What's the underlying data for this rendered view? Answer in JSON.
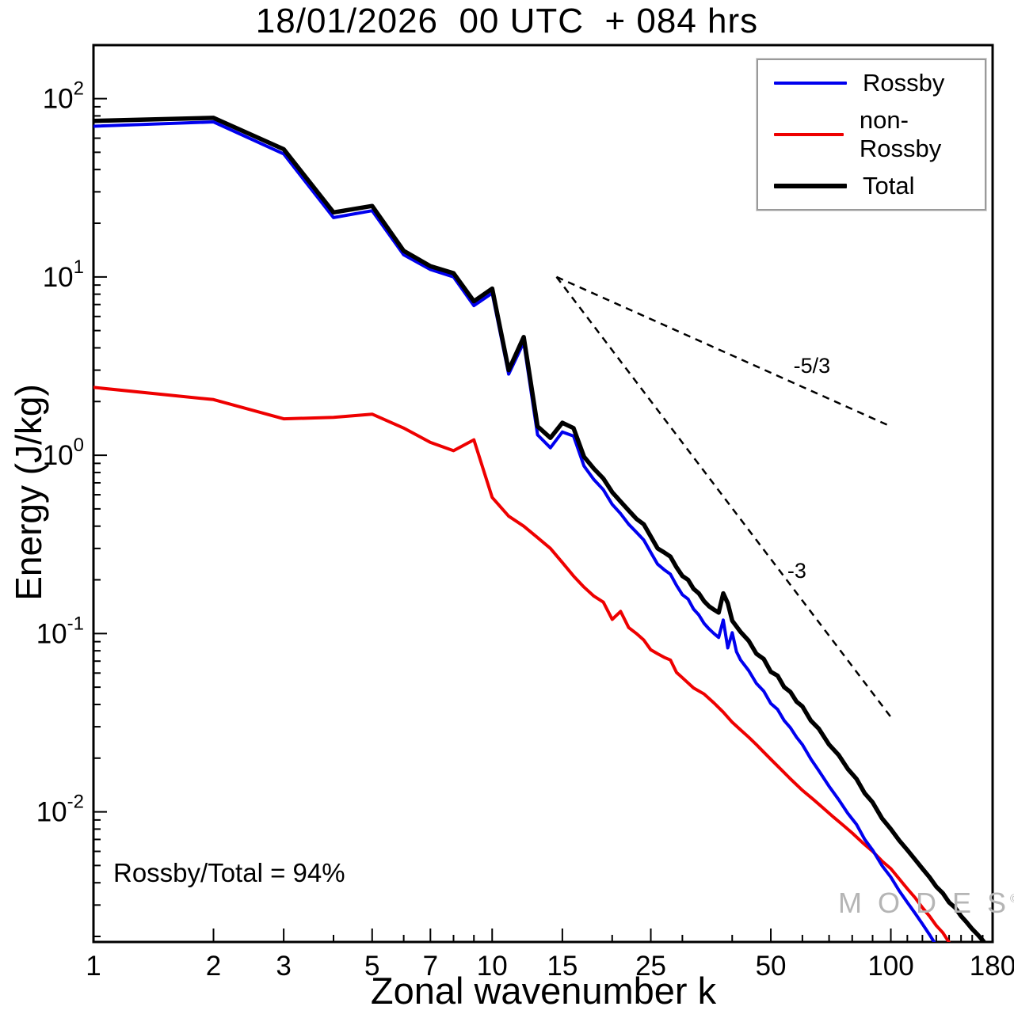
{
  "chart_data": {
    "type": "line",
    "title": "18/01/2026  00 UTC  + 084 hrs",
    "xlabel": "Zonal wavenumber k",
    "ylabel": "Energy (J/kg)",
    "annotation": "Rossby/Total = 94%",
    "watermark": "M O D E S",
    "watermark_mark": "©",
    "x_scale": "log",
    "y_scale": "log",
    "x_range": [
      1,
      180
    ],
    "y_range_exp": [
      -2.73,
      2.3
    ],
    "x_major_ticks": [
      1,
      2,
      3,
      5,
      7,
      10,
      15,
      25,
      50,
      100,
      180
    ],
    "y_major_tick_exps": [
      2,
      1,
      0,
      -1,
      -2
    ],
    "grid": false,
    "legend": {
      "position": "top-right",
      "entries": [
        {
          "label": "Rossby",
          "color": "#0000ee",
          "thickness": 4
        },
        {
          "label": "non-Rossby",
          "color": "#ee0000",
          "thickness": 4
        },
        {
          "label": "Total",
          "color": "#000000",
          "thickness": 6
        }
      ]
    },
    "ref_lines": [
      {
        "label": "-5/3",
        "from": [
          14.5,
          10
        ],
        "to": [
          100,
          1.45
        ],
        "label_at": [
          57,
          2.9
        ]
      },
      {
        "label": "-3",
        "from": [
          14.5,
          10
        ],
        "to": [
          100,
          0.034
        ],
        "label_at": [
          55,
          0.205
        ]
      }
    ],
    "series": [
      {
        "name": "non-Rossby",
        "color": "#ee0000",
        "width": 4,
        "points": [
          [
            1,
            2.4
          ],
          [
            2,
            2.05
          ],
          [
            3,
            1.6
          ],
          [
            4,
            1.63
          ],
          [
            5,
            1.7
          ],
          [
            6,
            1.42
          ],
          [
            7,
            1.18
          ],
          [
            8,
            1.06
          ],
          [
            9,
            1.22
          ],
          [
            10,
            0.58
          ],
          [
            11,
            0.455
          ],
          [
            12,
            0.4
          ],
          [
            13,
            0.345
          ],
          [
            14,
            0.3
          ],
          [
            15,
            0.25
          ],
          [
            16,
            0.21
          ],
          [
            17,
            0.182
          ],
          [
            18,
            0.162
          ],
          [
            19,
            0.15
          ],
          [
            20,
            0.12
          ],
          [
            21,
            0.133
          ],
          [
            22,
            0.108
          ],
          [
            23,
            0.1
          ],
          [
            24,
            0.092
          ],
          [
            25,
            0.081
          ],
          [
            26,
            0.077
          ],
          [
            27,
            0.0735
          ],
          [
            28,
            0.071
          ],
          [
            29,
            0.0605
          ],
          [
            30,
            0.0565
          ],
          [
            32,
            0.0495
          ],
          [
            34,
            0.0458
          ],
          [
            36,
            0.0408
          ],
          [
            38,
            0.0362
          ],
          [
            40,
            0.0318
          ],
          [
            42,
            0.0288
          ],
          [
            44,
            0.0262
          ],
          [
            46,
            0.0238
          ],
          [
            48,
            0.0216
          ],
          [
            50,
            0.0197
          ],
          [
            53,
            0.0173
          ],
          [
            56,
            0.0153
          ],
          [
            60,
            0.0132
          ],
          [
            64,
            0.0117
          ],
          [
            68,
            0.0104
          ],
          [
            72,
            0.0093
          ],
          [
            76,
            0.0084
          ],
          [
            80,
            0.0076
          ],
          [
            85,
            0.0067
          ],
          [
            90,
            0.006
          ],
          [
            95,
            0.0053
          ],
          [
            100,
            0.0048
          ],
          [
            105,
            0.0042
          ],
          [
            110,
            0.0037
          ],
          [
            115,
            0.0033
          ],
          [
            120,
            0.0029
          ],
          [
            125,
            0.0026
          ],
          [
            130,
            0.0023
          ],
          [
            135,
            0.0021
          ],
          [
            140,
            0.00185
          ],
          [
            145,
            0.00165
          ],
          [
            150,
            0.00148
          ],
          [
            155,
            0.00133
          ],
          [
            160,
            0.0012
          ]
        ]
      },
      {
        "name": "Rossby",
        "color": "#0000ee",
        "width": 4,
        "points": [
          [
            1,
            70
          ],
          [
            2,
            74
          ],
          [
            3,
            49
          ],
          [
            4,
            21.5
          ],
          [
            5,
            23.5
          ],
          [
            6,
            13.3
          ],
          [
            7,
            11.0
          ],
          [
            8,
            10.0
          ],
          [
            9,
            6.9
          ],
          [
            10,
            8.1
          ],
          [
            11,
            2.85
          ],
          [
            12,
            4.3
          ],
          [
            13,
            1.3
          ],
          [
            14,
            1.1
          ],
          [
            15,
            1.35
          ],
          [
            16,
            1.28
          ],
          [
            17,
            0.87
          ],
          [
            18,
            0.73
          ],
          [
            19,
            0.64
          ],
          [
            20,
            0.53
          ],
          [
            21,
            0.47
          ],
          [
            22,
            0.41
          ],
          [
            23,
            0.37
          ],
          [
            24,
            0.335
          ],
          [
            25,
            0.285
          ],
          [
            26,
            0.245
          ],
          [
            27,
            0.228
          ],
          [
            28,
            0.215
          ],
          [
            29,
            0.186
          ],
          [
            30,
            0.165
          ],
          [
            31,
            0.156
          ],
          [
            32,
            0.137
          ],
          [
            33,
            0.127
          ],
          [
            34,
            0.114
          ],
          [
            35,
            0.106
          ],
          [
            36,
            0.1
          ],
          [
            37,
            0.095
          ],
          [
            38,
            0.119
          ],
          [
            39,
            0.083
          ],
          [
            40,
            0.101
          ],
          [
            41,
            0.079
          ],
          [
            42,
            0.071
          ],
          [
            44,
            0.062
          ],
          [
            46,
            0.0525
          ],
          [
            48,
            0.0475
          ],
          [
            50,
            0.0405
          ],
          [
            52,
            0.0375
          ],
          [
            54,
            0.0325
          ],
          [
            56,
            0.0296
          ],
          [
            58,
            0.0262
          ],
          [
            60,
            0.0238
          ],
          [
            63,
            0.0198
          ],
          [
            66,
            0.017
          ],
          [
            70,
            0.0139
          ],
          [
            74,
            0.0117
          ],
          [
            78,
            0.0098
          ],
          [
            82,
            0.0085
          ],
          [
            86,
            0.007
          ],
          [
            90,
            0.0061
          ],
          [
            95,
            0.005
          ],
          [
            100,
            0.0043
          ],
          [
            105,
            0.0036
          ],
          [
            110,
            0.0031
          ],
          [
            115,
            0.0027
          ],
          [
            120,
            0.00235
          ],
          [
            125,
            0.00205
          ],
          [
            130,
            0.00178
          ],
          [
            135,
            0.00157
          ],
          [
            140,
            0.00139
          ],
          [
            145,
            0.00123
          ],
          [
            150,
            0.0011
          ],
          [
            155,
            0.00098
          ],
          [
            160,
            0.00088
          ]
        ]
      },
      {
        "name": "Total",
        "color": "#000000",
        "width": 5.5,
        "points": [
          [
            1,
            75
          ],
          [
            2,
            78
          ],
          [
            3,
            52
          ],
          [
            4,
            23
          ],
          [
            5,
            25
          ],
          [
            6,
            14
          ],
          [
            7,
            11.5
          ],
          [
            8,
            10.5
          ],
          [
            9,
            7.3
          ],
          [
            10,
            8.6
          ],
          [
            11,
            3.0
          ],
          [
            12,
            4.6
          ],
          [
            13,
            1.45
          ],
          [
            14,
            1.25
          ],
          [
            15,
            1.52
          ],
          [
            16,
            1.42
          ],
          [
            17,
            0.98
          ],
          [
            18,
            0.84
          ],
          [
            19,
            0.74
          ],
          [
            20,
            0.62
          ],
          [
            21,
            0.55
          ],
          [
            22,
            0.49
          ],
          [
            23,
            0.44
          ],
          [
            24,
            0.41
          ],
          [
            25,
            0.35
          ],
          [
            26,
            0.3
          ],
          [
            27,
            0.285
          ],
          [
            28,
            0.27
          ],
          [
            29,
            0.235
          ],
          [
            30,
            0.21
          ],
          [
            31,
            0.2
          ],
          [
            32,
            0.178
          ],
          [
            33,
            0.168
          ],
          [
            34,
            0.152
          ],
          [
            35,
            0.142
          ],
          [
            36,
            0.136
          ],
          [
            37,
            0.131
          ],
          [
            38,
            0.168
          ],
          [
            39,
            0.148
          ],
          [
            40,
            0.118
          ],
          [
            42,
            0.102
          ],
          [
            44,
            0.091
          ],
          [
            46,
            0.077
          ],
          [
            48,
            0.072
          ],
          [
            50,
            0.061
          ],
          [
            52,
            0.058
          ],
          [
            54,
            0.05
          ],
          [
            56,
            0.047
          ],
          [
            58,
            0.0415
          ],
          [
            60,
            0.039
          ],
          [
            63,
            0.0325
          ],
          [
            66,
            0.0292
          ],
          [
            70,
            0.0238
          ],
          [
            74,
            0.0208
          ],
          [
            78,
            0.0174
          ],
          [
            82,
            0.0153
          ],
          [
            86,
            0.0127
          ],
          [
            90,
            0.0113
          ],
          [
            95,
            0.0092
          ],
          [
            100,
            0.008
          ],
          [
            105,
            0.0069
          ],
          [
            110,
            0.0061
          ],
          [
            115,
            0.0054
          ],
          [
            120,
            0.0048
          ],
          [
            125,
            0.0043
          ],
          [
            130,
            0.0038
          ],
          [
            135,
            0.0035
          ],
          [
            140,
            0.0031
          ],
          [
            145,
            0.0029
          ],
          [
            150,
            0.0026
          ],
          [
            155,
            0.0024
          ],
          [
            160,
            0.0022
          ],
          [
            165,
            0.00205
          ],
          [
            170,
            0.0019
          ],
          [
            175,
            0.00175
          ],
          [
            180,
            0.0016
          ]
        ]
      }
    ]
  }
}
